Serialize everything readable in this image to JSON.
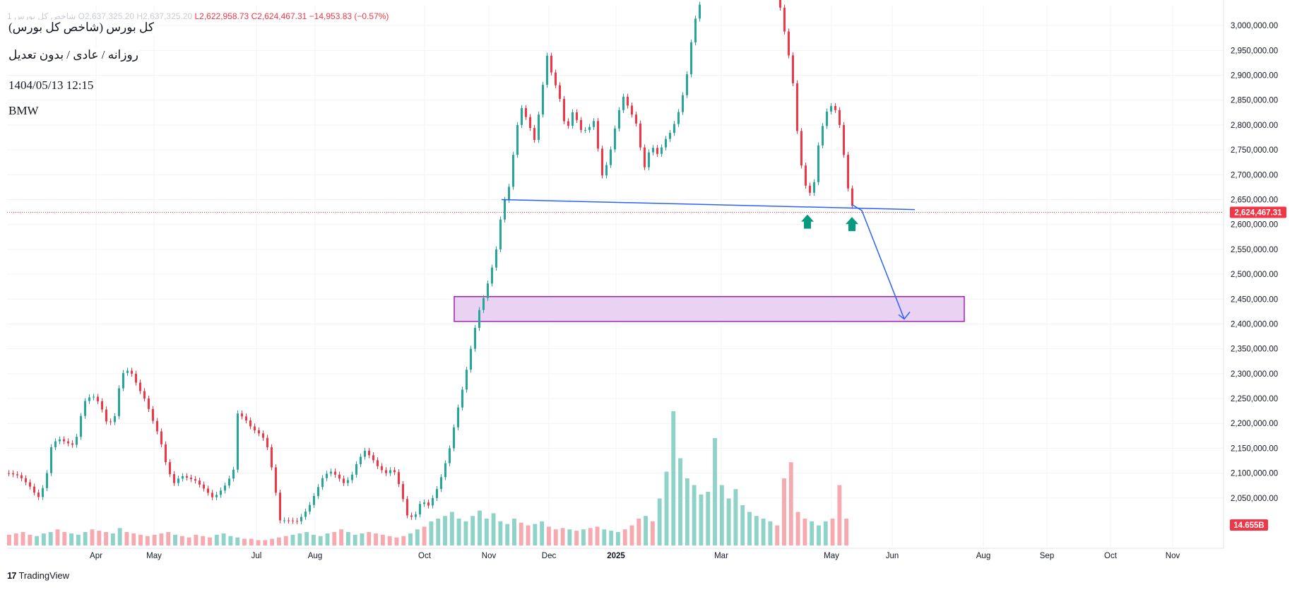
{
  "legend": {
    "symbol": "شاخص کل بورس 1",
    "open": "O2,637,325.20",
    "high": "H2,637,325.20",
    "low": "L2,622,958.73",
    "close": "C2,624,467.31",
    "change": "−14,953.83 (−0.57%)"
  },
  "info": {
    "line1": "کل بورس (شاخص کل بورس)",
    "line2": "روزانه / عادی / بدون تعدیل",
    "line3": "1404/05/13 12:15",
    "line4": "BMW"
  },
  "branding": {
    "name": "TradingView"
  },
  "colors": {
    "up": "#26a69a",
    "down": "#f23645",
    "vol_up": "#8fd3c8",
    "vol_down": "#f7a9b0",
    "trendline": "#2962ff",
    "zone_fill": "#e9d2f2",
    "zone_border": "#9c27b0",
    "arrow_marker": "#089981",
    "grid": "#f0f3fa"
  },
  "chart_data": {
    "type": "candlestick",
    "y_axis": {
      "range": [
        2000000,
        3040000
      ],
      "ticks": [
        "3,000,000.00",
        "2,950,000.00",
        "2,900,000.00",
        "2,850,000.00",
        "2,800,000.00",
        "2,750,000.00",
        "2,700,000.00",
        "2,650,000.00",
        "2,600,000.00",
        "2,550,000.00",
        "2,500,000.00",
        "2,450,000.00",
        "2,400,000.00",
        "2,350,000.00",
        "2,300,000.00",
        "2,250,000.00",
        "2,200,000.00",
        "2,150,000.00",
        "2,100,000.00",
        "2,050,000.00"
      ]
    },
    "x_axis": {
      "labels": [
        "Apr",
        "May",
        "Jul",
        "Aug",
        "Oct",
        "Nov",
        "Dec",
        "2025",
        "Mar",
        "May",
        "Jun",
        "Aug",
        "Sep",
        "Oct",
        "Nov"
      ],
      "bold_label": "2025"
    },
    "price_path": [
      [
        0,
        2100000
      ],
      [
        15,
        2095000
      ],
      [
        30,
        2075000
      ],
      [
        40,
        2055000
      ],
      [
        45,
        2050000
      ],
      [
        55,
        2100000
      ],
      [
        60,
        2150000
      ],
      [
        70,
        2170000
      ],
      [
        85,
        2160000
      ],
      [
        95,
        2155000
      ],
      [
        100,
        2200000
      ],
      [
        110,
        2250000
      ],
      [
        120,
        2255000
      ],
      [
        130,
        2240000
      ],
      [
        140,
        2200000
      ],
      [
        150,
        2205000
      ],
      [
        158,
        2280000
      ],
      [
        165,
        2310000
      ],
      [
        175,
        2300000
      ],
      [
        185,
        2270000
      ],
      [
        195,
        2245000
      ],
      [
        205,
        2205000
      ],
      [
        215,
        2170000
      ],
      [
        225,
        2110000
      ],
      [
        235,
        2080000
      ],
      [
        245,
        2095000
      ],
      [
        255,
        2090000
      ],
      [
        265,
        2085000
      ],
      [
        280,
        2065000
      ],
      [
        290,
        2050000
      ],
      [
        298,
        2060000
      ],
      [
        310,
        2080000
      ],
      [
        320,
        2110000
      ],
      [
        325,
        2220000
      ],
      [
        335,
        2210000
      ],
      [
        345,
        2190000
      ],
      [
        355,
        2180000
      ],
      [
        365,
        2165000
      ],
      [
        372,
        2120000
      ],
      [
        378,
        2070000
      ],
      [
        385,
        2005000
      ],
      [
        395,
        2005000
      ],
      [
        410,
        2003000
      ],
      [
        425,
        2030000
      ],
      [
        435,
        2060000
      ],
      [
        445,
        2090000
      ],
      [
        455,
        2105000
      ],
      [
        465,
        2095000
      ],
      [
        475,
        2080000
      ],
      [
        485,
        2090000
      ],
      [
        495,
        2125000
      ],
      [
        505,
        2145000
      ],
      [
        515,
        2130000
      ],
      [
        525,
        2110000
      ],
      [
        535,
        2100000
      ],
      [
        545,
        2110000
      ],
      [
        555,
        2070000
      ],
      [
        565,
        2015000
      ],
      [
        575,
        2010000
      ],
      [
        585,
        2045000
      ],
      [
        595,
        2035000
      ],
      [
        605,
        2060000
      ],
      [
        615,
        2100000
      ],
      [
        625,
        2150000
      ],
      [
        635,
        2220000
      ],
      [
        645,
        2280000
      ],
      [
        655,
        2350000
      ],
      [
        665,
        2420000
      ],
      [
        675,
        2460000
      ],
      [
        690,
        2540000
      ],
      [
        700,
        2640000
      ],
      [
        708,
        2665000
      ],
      [
        715,
        2740000
      ],
      [
        725,
        2840000
      ],
      [
        735,
        2810000
      ],
      [
        745,
        2770000
      ],
      [
        755,
        2855000
      ],
      [
        762,
        2945000
      ],
      [
        770,
        2900000
      ],
      [
        780,
        2860000
      ],
      [
        790,
        2785000
      ],
      [
        800,
        2830000
      ],
      [
        810,
        2790000
      ],
      [
        820,
        2790000
      ],
      [
        830,
        2810000
      ],
      [
        840,
        2695000
      ],
      [
        850,
        2730000
      ],
      [
        860,
        2800000
      ],
      [
        870,
        2860000
      ],
      [
        880,
        2830000
      ],
      [
        890,
        2800000
      ],
      [
        900,
        2710000
      ],
      [
        910,
        2760000
      ],
      [
        920,
        2740000
      ],
      [
        930,
        2770000
      ],
      [
        940,
        2790000
      ],
      [
        950,
        2830000
      ],
      [
        960,
        2890000
      ],
      [
        965,
        2950000
      ],
      [
        975,
        3030000
      ],
      [
        985,
        3060000
      ],
      [
        1090,
        3060000
      ],
      [
        1100,
        2980000
      ],
      [
        1110,
        2900000
      ],
      [
        1115,
        2820000
      ],
      [
        1120,
        2740000
      ],
      [
        1127,
        2690000
      ],
      [
        1132,
        2660000
      ],
      [
        1140,
        2670000
      ],
      [
        1145,
        2745000
      ],
      [
        1150,
        2780000
      ],
      [
        1155,
        2810000
      ],
      [
        1162,
        2840000
      ],
      [
        1170,
        2835000
      ],
      [
        1177,
        2800000
      ],
      [
        1183,
        2740000
      ],
      [
        1188,
        2680000
      ],
      [
        1192,
        2650000
      ],
      [
        1198,
        2625000
      ],
      [
        1200,
        2624467
      ]
    ],
    "volume_scale_ratio": [
      0.08,
      0.09,
      0.1,
      0.08,
      0.07,
      0.09,
      0.1,
      0.12,
      0.1,
      0.09,
      0.08,
      0.1,
      0.12,
      0.11,
      0.1,
      0.09,
      0.13,
      0.1,
      0.09,
      0.08,
      0.07,
      0.08,
      0.09,
      0.1,
      0.08,
      0.07,
      0.06,
      0.08,
      0.07,
      0.06,
      0.08,
      0.09,
      0.07,
      0.06,
      0.05,
      0.05,
      0.04,
      0.04,
      0.05,
      0.06,
      0.07,
      0.08,
      0.09,
      0.1,
      0.08,
      0.07,
      0.09,
      0.1,
      0.12,
      0.1,
      0.08,
      0.09,
      0.1,
      0.09,
      0.08,
      0.07,
      0.06,
      0.07,
      0.09,
      0.12,
      0.14,
      0.18,
      0.2,
      0.22,
      0.25,
      0.2,
      0.18,
      0.22,
      0.26,
      0.2,
      0.24,
      0.18,
      0.16,
      0.2,
      0.17,
      0.15,
      0.16,
      0.18,
      0.14,
      0.12,
      0.13,
      0.12,
      0.11,
      0.12,
      0.13,
      0.14,
      0.12,
      0.11,
      0.1,
      0.12,
      0.15,
      0.2,
      0.22,
      0.18,
      0.35,
      0.55,
      1.0,
      0.65,
      0.5,
      0.45,
      0.38,
      0.4,
      0.8,
      0.45,
      0.35,
      0.42,
      0.3,
      0.25,
      0.22,
      0.2,
      0.18,
      0.15,
      0.5,
      0.62,
      0.25,
      0.2,
      0.18,
      0.15,
      0.18,
      0.2,
      0.45,
      0.2
    ],
    "volume_label": "14.655B",
    "last_price": 2624467.31,
    "last_price_label": "2,624,467.31",
    "trendline": {
      "from": {
        "x_index": 700,
        "y": 2650000
      },
      "to": {
        "x_index": 1285,
        "y": 2630000
      }
    },
    "projection_arrow": {
      "from": {
        "x_index": 1210,
        "y": 2628000
      },
      "to": {
        "x_index": 1270,
        "y": 2410000
      }
    },
    "zone": {
      "from_x_index": 633,
      "to_x_index": 1355,
      "y_low": 2405000,
      "y_high": 2455000
    },
    "up_markers": [
      {
        "x_index": 1133,
        "y": 2620000
      },
      {
        "x_index": 1196,
        "y": 2615000
      }
    ]
  }
}
